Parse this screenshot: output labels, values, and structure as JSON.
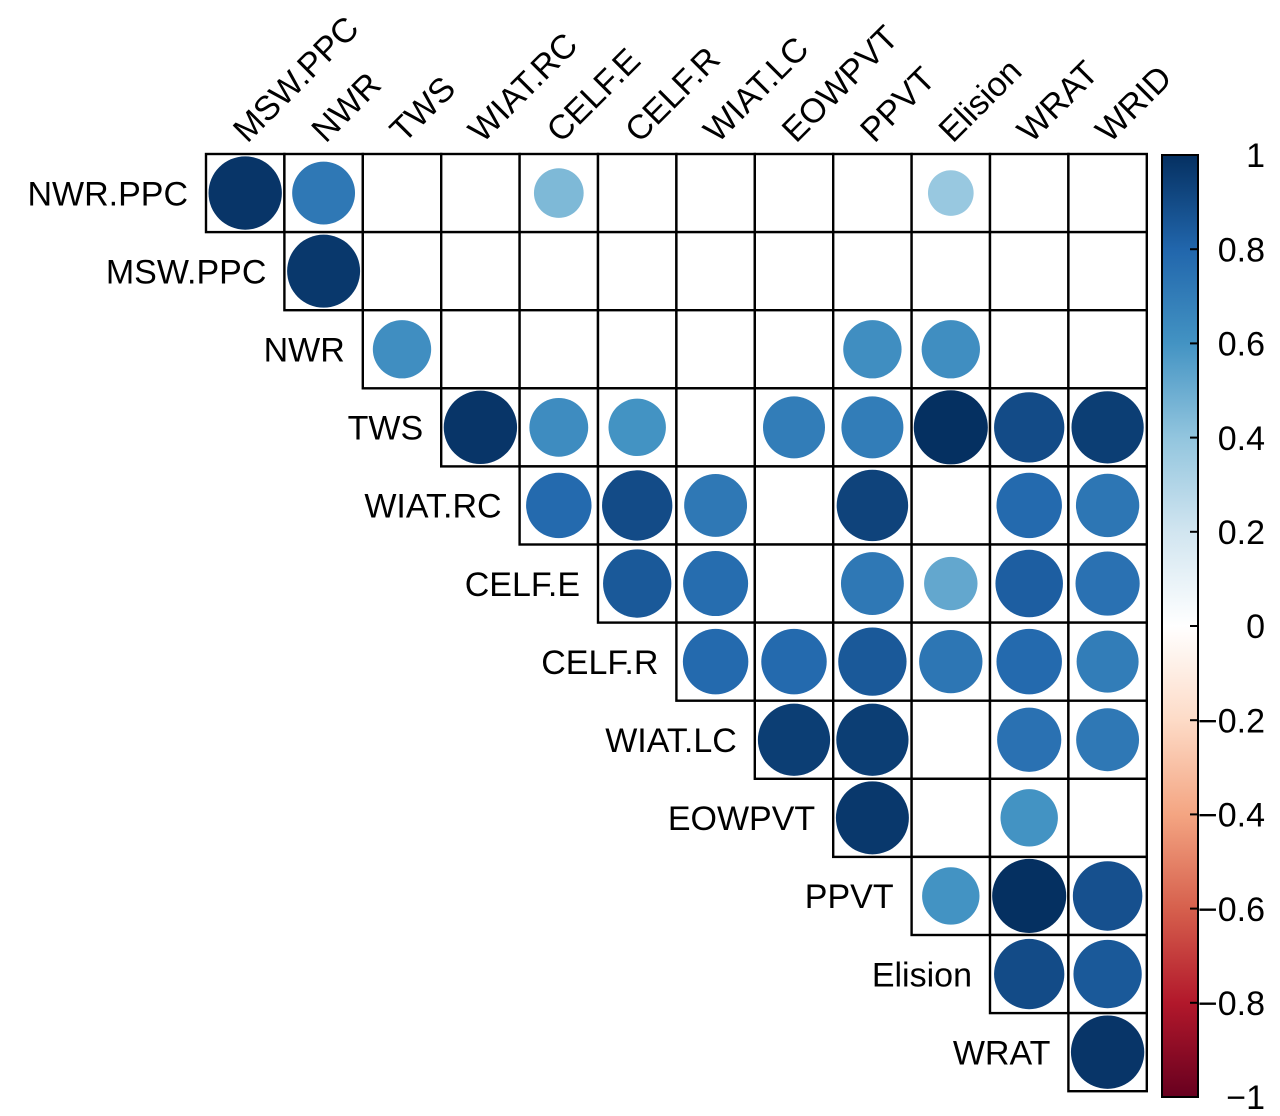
{
  "chart_data": {
    "type": "heatmap",
    "subtype": "upper-triangle correlation matrix (circle glyphs)",
    "row_labels": [
      "NWR.PPC",
      "MSW.PPC",
      "NWR",
      "TWS",
      "WIAT.RC",
      "CELF.E",
      "CELF.R",
      "WIAT.LC",
      "EOWPVT",
      "PPVT",
      "Elision",
      "WRAT"
    ],
    "col_labels": [
      "MSW.PPC",
      "NWR",
      "TWS",
      "WIAT.RC",
      "CELF.E",
      "CELF.R",
      "WIAT.LC",
      "EOWPVT",
      "PPVT",
      "Elision",
      "WRAT",
      "WRID"
    ],
    "cells": [
      {
        "row": "NWR.PPC",
        "col": "MSW.PPC",
        "value": 0.98
      },
      {
        "row": "NWR.PPC",
        "col": "NWR",
        "value": 0.72
      },
      {
        "row": "NWR.PPC",
        "col": "CELF.E",
        "value": 0.45
      },
      {
        "row": "NWR.PPC",
        "col": "Elision",
        "value": 0.38
      },
      {
        "row": "MSW.PPC",
        "col": "NWR",
        "value": 0.97
      },
      {
        "row": "NWR",
        "col": "TWS",
        "value": 0.62
      },
      {
        "row": "NWR",
        "col": "PPVT",
        "value": 0.62
      },
      {
        "row": "NWR",
        "col": "Elision",
        "value": 0.62
      },
      {
        "row": "TWS",
        "col": "WIAT.RC",
        "value": 0.98
      },
      {
        "row": "TWS",
        "col": "CELF.E",
        "value": 0.63
      },
      {
        "row": "TWS",
        "col": "CELF.R",
        "value": 0.6
      },
      {
        "row": "TWS",
        "col": "EOWPVT",
        "value": 0.7
      },
      {
        "row": "TWS",
        "col": "PPVT",
        "value": 0.7
      },
      {
        "row": "TWS",
        "col": "Elision",
        "value": 1.0
      },
      {
        "row": "TWS",
        "col": "WRAT",
        "value": 0.9
      },
      {
        "row": "TWS",
        "col": "WRID",
        "value": 0.95
      },
      {
        "row": "WIAT.RC",
        "col": "CELF.E",
        "value": 0.78
      },
      {
        "row": "WIAT.RC",
        "col": "CELF.R",
        "value": 0.9
      },
      {
        "row": "WIAT.RC",
        "col": "WIAT.LC",
        "value": 0.72
      },
      {
        "row": "WIAT.RC",
        "col": "PPVT",
        "value": 0.93
      },
      {
        "row": "WIAT.RC",
        "col": "WRAT",
        "value": 0.78
      },
      {
        "row": "WIAT.RC",
        "col": "WRID",
        "value": 0.73
      },
      {
        "row": "CELF.E",
        "col": "CELF.R",
        "value": 0.85
      },
      {
        "row": "CELF.E",
        "col": "WIAT.LC",
        "value": 0.77
      },
      {
        "row": "CELF.E",
        "col": "PPVT",
        "value": 0.72
      },
      {
        "row": "CELF.E",
        "col": "Elision",
        "value": 0.52
      },
      {
        "row": "CELF.E",
        "col": "WRAT",
        "value": 0.83
      },
      {
        "row": "CELF.E",
        "col": "WRID",
        "value": 0.75
      },
      {
        "row": "CELF.R",
        "col": "WIAT.LC",
        "value": 0.78
      },
      {
        "row": "CELF.R",
        "col": "EOWPVT",
        "value": 0.78
      },
      {
        "row": "CELF.R",
        "col": "PPVT",
        "value": 0.85
      },
      {
        "row": "CELF.R",
        "col": "Elision",
        "value": 0.73
      },
      {
        "row": "CELF.R",
        "col": "WRAT",
        "value": 0.78
      },
      {
        "row": "CELF.R",
        "col": "WRID",
        "value": 0.7
      },
      {
        "row": "WIAT.LC",
        "col": "EOWPVT",
        "value": 0.95
      },
      {
        "row": "WIAT.LC",
        "col": "PPVT",
        "value": 0.95
      },
      {
        "row": "WIAT.LC",
        "col": "WRAT",
        "value": 0.75
      },
      {
        "row": "WIAT.LC",
        "col": "WRID",
        "value": 0.72
      },
      {
        "row": "EOWPVT",
        "col": "PPVT",
        "value": 0.97
      },
      {
        "row": "EOWPVT",
        "col": "WRAT",
        "value": 0.6
      },
      {
        "row": "PPVT",
        "col": "Elision",
        "value": 0.6
      },
      {
        "row": "PPVT",
        "col": "WRAT",
        "value": 1.0
      },
      {
        "row": "PPVT",
        "col": "WRID",
        "value": 0.88
      },
      {
        "row": "Elision",
        "col": "WRAT",
        "value": 0.9
      },
      {
        "row": "Elision",
        "col": "WRID",
        "value": 0.85
      },
      {
        "row": "WRAT",
        "col": "WRID",
        "value": 0.98
      }
    ],
    "colorbar": {
      "range": [
        -1,
        1
      ],
      "tick_values": [
        1,
        0.8,
        0.6,
        0.4,
        0.2,
        0,
        -0.2,
        -0.4,
        -0.6,
        -0.8,
        -1
      ],
      "tick_labels": [
        "1",
        "0.8",
        "0.6",
        "0.4",
        "0.2",
        "0",
        "−0.2",
        "−0.4",
        "−0.6",
        "−0.8",
        "−1"
      ],
      "colors": [
        "#67001F",
        "#B2182B",
        "#D6604D",
        "#F4A582",
        "#FDDBC7",
        "#FFFFFF",
        "#D1E5F0",
        "#92C5DE",
        "#4393C3",
        "#2166AC",
        "#053061"
      ]
    },
    "title": "",
    "xlabel": "",
    "ylabel": "",
    "grid": true,
    "legend": "right"
  }
}
